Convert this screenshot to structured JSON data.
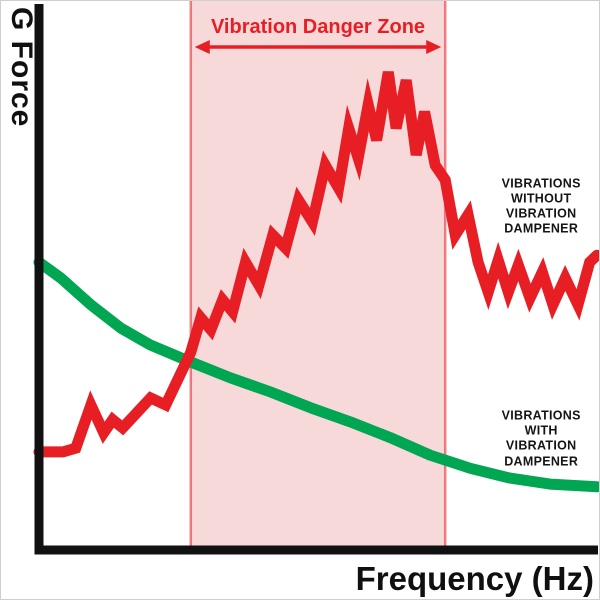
{
  "chart_data": {
    "type": "line",
    "title": "",
    "xlabel": "Frequency (Hz)",
    "ylabel": "G Force",
    "x_range": [
      0,
      100
    ],
    "y_range": [
      0,
      100
    ],
    "grid": false,
    "axes_color": "#111111",
    "x_tick_labels": [],
    "y_tick_labels": [],
    "danger_zone": {
      "label": "Vibration Danger Zone",
      "x_start": 27.2,
      "x_end": 72.8,
      "fill": "#f8d9da",
      "border_color": "#e81e25",
      "label_color": "#e81e25"
    },
    "series": [
      {
        "name": "Vibrations without vibration dampener",
        "color": "#e81e25",
        "stroke_width": 11,
        "points": [
          [
            0,
            18
          ],
          [
            4.3,
            18
          ],
          [
            6.6,
            18.7
          ],
          [
            9.3,
            26.6
          ],
          [
            11.6,
            21.5
          ],
          [
            13.2,
            23.9
          ],
          [
            15,
            22.4
          ],
          [
            20,
            27.9
          ],
          [
            22.7,
            26.6
          ],
          [
            27.2,
            36.3
          ],
          [
            29,
            42.6
          ],
          [
            30.8,
            40.4
          ],
          [
            32.9,
            45.9
          ],
          [
            34.7,
            43.7
          ],
          [
            37,
            52.8
          ],
          [
            39.4,
            48.6
          ],
          [
            41.9,
            57.8
          ],
          [
            44.2,
            55.4
          ],
          [
            46.5,
            64.2
          ],
          [
            49,
            60.2
          ],
          [
            51.3,
            70.6
          ],
          [
            53.7,
            66.4
          ],
          [
            55.5,
            77.4
          ],
          [
            57.2,
            71.9
          ],
          [
            59,
            81.7
          ],
          [
            60.5,
            75.2
          ],
          [
            62.6,
            87.7
          ],
          [
            64,
            77.4
          ],
          [
            65.8,
            86.2
          ],
          [
            67.6,
            72.5
          ],
          [
            69.1,
            80.4
          ],
          [
            71,
            70.6
          ],
          [
            72.8,
            67.9
          ],
          [
            74.6,
            57.8
          ],
          [
            76.9,
            61.5
          ],
          [
            78.7,
            52.8
          ],
          [
            80.5,
            47.3
          ],
          [
            82.3,
            53.2
          ],
          [
            84.1,
            47.3
          ],
          [
            85.9,
            52.3
          ],
          [
            88,
            46.2
          ],
          [
            90.2,
            51
          ],
          [
            92.1,
            45
          ],
          [
            94.3,
            49.9
          ],
          [
            96.6,
            45
          ],
          [
            98.7,
            52.8
          ],
          [
            100,
            54.1
          ]
        ]
      },
      {
        "name": "Vibrations with vibration dampener",
        "color": "#00a651",
        "stroke_width": 11,
        "points": [
          [
            0,
            52.8
          ],
          [
            3.9,
            49.9
          ],
          [
            9.3,
            45
          ],
          [
            14.7,
            40.7
          ],
          [
            20,
            37.6
          ],
          [
            27.2,
            34.5
          ],
          [
            34.3,
            31.6
          ],
          [
            41.5,
            29
          ],
          [
            48.7,
            26.1
          ],
          [
            55.8,
            23.5
          ],
          [
            63,
            20.6
          ],
          [
            70.1,
            17.4
          ],
          [
            77.3,
            15
          ],
          [
            84.4,
            13.2
          ],
          [
            91.6,
            12.1
          ],
          [
            100,
            11.6
          ]
        ]
      }
    ],
    "annotations": [
      {
        "id": "without",
        "lines": [
          "VIBRATIONS",
          "WITHOUT",
          "VIBRATION",
          "DAMPENER"
        ],
        "x": 90,
        "y": 63
      },
      {
        "id": "with",
        "lines": [
          "VIBRATIONS",
          "WITH",
          "VIBRATION",
          "DAMPENER"
        ],
        "x": 90,
        "y": 20.4
      }
    ]
  }
}
